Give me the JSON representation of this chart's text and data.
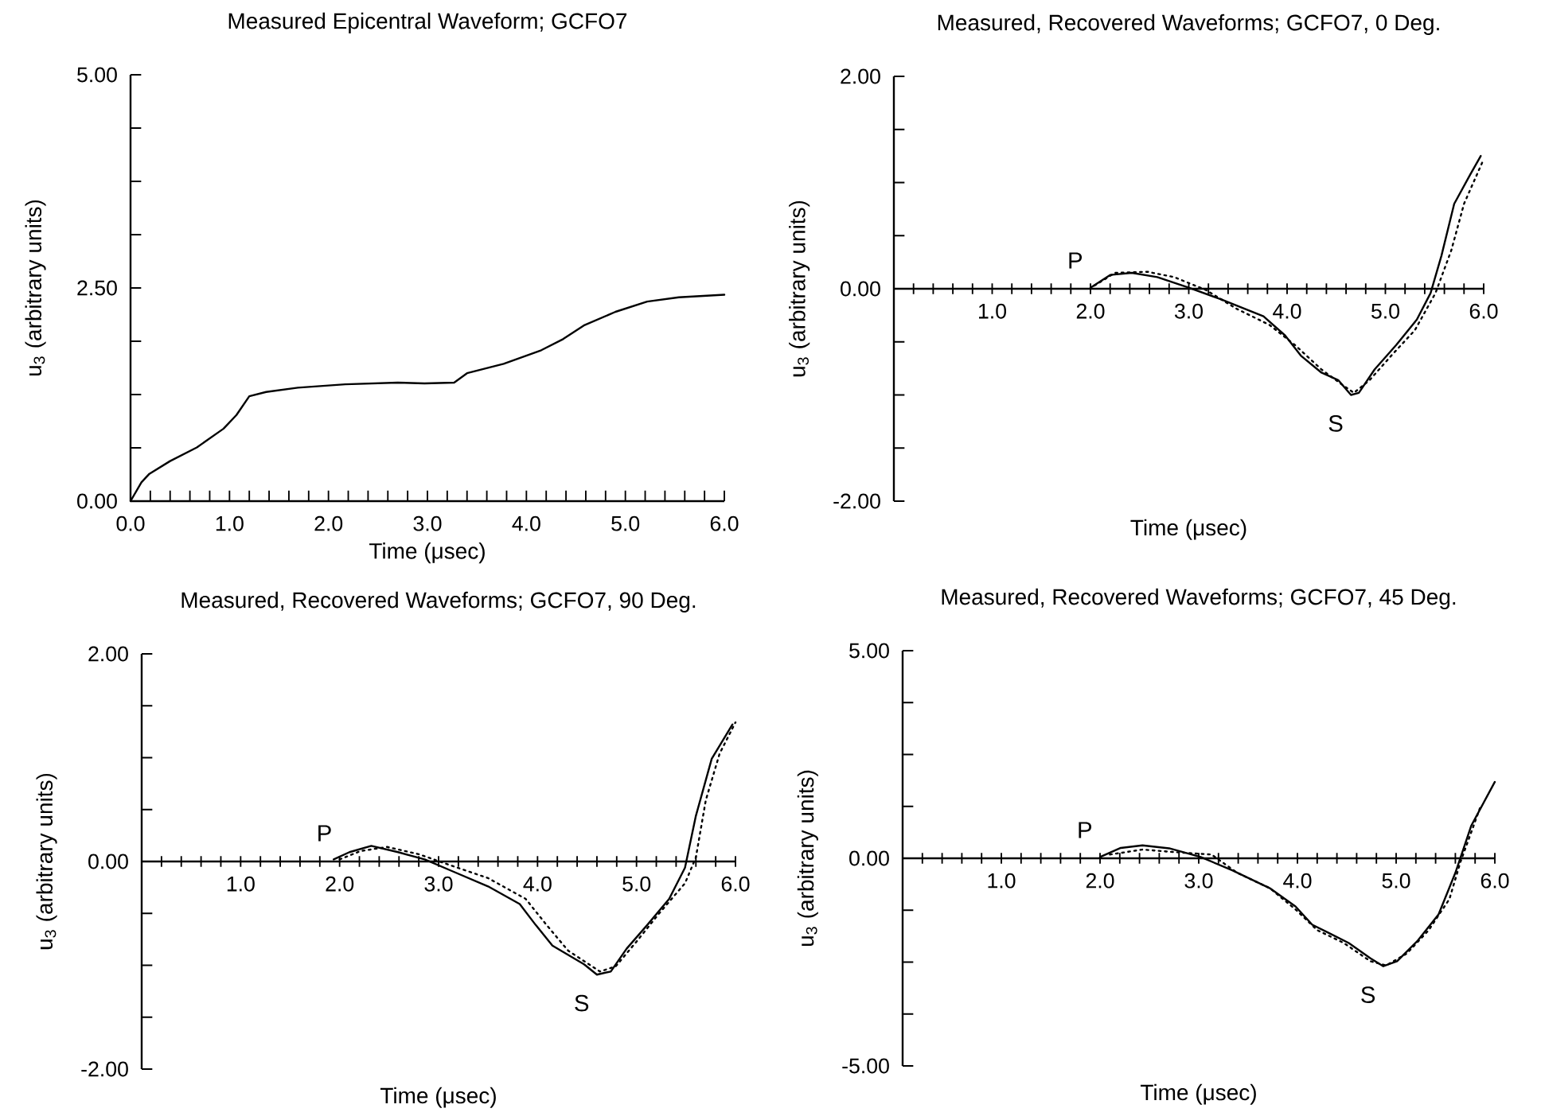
{
  "chart_data": [
    {
      "type": "line",
      "title": "Measured Epicentral Waveform; GCFO7",
      "xlabel": "Time (μsec)",
      "ylabel": "u$_{3}$ (arbitrary units)",
      "xlim": [
        0,
        6
      ],
      "ylim": [
        0,
        5
      ],
      "xticks": [
        {
          "value": 0,
          "label": "0.0"
        },
        {
          "value": 0.2,
          "label": null
        },
        {
          "value": 0.4,
          "label": null
        },
        {
          "value": 0.6,
          "label": null
        },
        {
          "value": 0.8,
          "label": null
        },
        {
          "value": 1,
          "label": "1.0"
        },
        {
          "value": 1.2,
          "label": null
        },
        {
          "value": 1.4,
          "label": null
        },
        {
          "value": 1.6,
          "label": null
        },
        {
          "value": 1.8,
          "label": null
        },
        {
          "value": 2,
          "label": "2.0"
        },
        {
          "value": 2.2,
          "label": null
        },
        {
          "value": 2.4,
          "label": null
        },
        {
          "value": 2.6,
          "label": null
        },
        {
          "value": 2.8,
          "label": null
        },
        {
          "value": 3,
          "label": "3.0"
        },
        {
          "value": 3.2,
          "label": null
        },
        {
          "value": 3.4,
          "label": null
        },
        {
          "value": 3.6,
          "label": null
        },
        {
          "value": 3.8,
          "label": null
        },
        {
          "value": 4,
          "label": "4.0"
        },
        {
          "value": 4.2,
          "label": null
        },
        {
          "value": 4.4,
          "label": null
        },
        {
          "value": 4.6,
          "label": null
        },
        {
          "value": 4.8,
          "label": null
        },
        {
          "value": 5,
          "label": "5.0"
        },
        {
          "value": 5.2,
          "label": null
        },
        {
          "value": 5.4,
          "label": null
        },
        {
          "value": 5.6,
          "label": null
        },
        {
          "value": 5.8,
          "label": null
        },
        {
          "value": 6,
          "label": "6.0"
        }
      ],
      "yticks": [
        {
          "value": 0,
          "label": "0.00"
        },
        {
          "value": 0.625,
          "label": null
        },
        {
          "value": 1.25,
          "label": null
        },
        {
          "value": 1.875,
          "label": null
        },
        {
          "value": 2.5,
          "label": "2.50"
        },
        {
          "value": 3.125,
          "label": null
        },
        {
          "value": 3.75,
          "label": null
        },
        {
          "value": 4.375,
          "label": null
        },
        {
          "value": 5,
          "label": "5.00"
        }
      ],
      "series": [
        {
          "color": "#000000",
          "line_style": "solid",
          "x": [
            0,
            0.11,
            0.19,
            0.4,
            0.67,
            0.94,
            1.07,
            1.2,
            1.37,
            1.69,
            2.17,
            2.7,
            2.97,
            3.27,
            3.4,
            3.77,
            4.15,
            4.37,
            4.58,
            4.9,
            5.22,
            5.54,
            6.0
          ],
          "values": [
            0,
            0.22,
            0.32,
            0.47,
            0.63,
            0.85,
            1.01,
            1.23,
            1.28,
            1.33,
            1.37,
            1.39,
            1.38,
            1.39,
            1.5,
            1.61,
            1.77,
            1.9,
            2.06,
            2.22,
            2.34,
            2.39,
            2.42
          ]
        }
      ]
    },
    {
      "type": "line",
      "title": "Measured, Recovered Waveforms; GCFO7, 0 Deg.",
      "xlabel": "Time (μsec)",
      "ylabel": "u$_{3}$ (arbitrary units)",
      "xlim": [
        0,
        6
      ],
      "ylim": [
        -2,
        2
      ],
      "xticks": [
        {
          "value": 0.2,
          "label": null
        },
        {
          "value": 0.4,
          "label": null
        },
        {
          "value": 0.6,
          "label": null
        },
        {
          "value": 0.8,
          "label": null
        },
        {
          "value": 1,
          "label": "1.0"
        },
        {
          "value": 1.2,
          "label": null
        },
        {
          "value": 1.4,
          "label": null
        },
        {
          "value": 1.6,
          "label": null
        },
        {
          "value": 1.8,
          "label": null
        },
        {
          "value": 2,
          "label": "2.0"
        },
        {
          "value": 2.2,
          "label": null
        },
        {
          "value": 2.4,
          "label": null
        },
        {
          "value": 2.6,
          "label": null
        },
        {
          "value": 2.8,
          "label": null
        },
        {
          "value": 3,
          "label": "3.0"
        },
        {
          "value": 3.2,
          "label": null
        },
        {
          "value": 3.4,
          "label": null
        },
        {
          "value": 3.6,
          "label": null
        },
        {
          "value": 3.8,
          "label": null
        },
        {
          "value": 4,
          "label": "4.0"
        },
        {
          "value": 4.2,
          "label": null
        },
        {
          "value": 4.4,
          "label": null
        },
        {
          "value": 4.6,
          "label": null
        },
        {
          "value": 4.8,
          "label": null
        },
        {
          "value": 5,
          "label": "5.0"
        },
        {
          "value": 5.2,
          "label": null
        },
        {
          "value": 5.4,
          "label": null
        },
        {
          "value": 5.6,
          "label": null
        },
        {
          "value": 5.8,
          "label": null
        },
        {
          "value": 6,
          "label": "6.0"
        }
      ],
      "yticks": [
        {
          "value": -2,
          "label": "-2.00"
        },
        {
          "value": -1.5,
          "label": null
        },
        {
          "value": -1,
          "label": null
        },
        {
          "value": -0.5,
          "label": null
        },
        {
          "value": 0,
          "label": "0.00"
        },
        {
          "value": 0.5,
          "label": null
        },
        {
          "value": 1,
          "label": null
        },
        {
          "value": 1.5,
          "label": null
        },
        {
          "value": 2,
          "label": "2.00"
        }
      ],
      "annotations": [
        {
          "text": "P",
          "x": 2.0,
          "y": 0
        },
        {
          "text": "S",
          "x": 4.65,
          "y": -1.0
        }
      ],
      "series": [
        {
          "color": "#000000",
          "line_style": "solid",
          "x": [
            2.0,
            2.2,
            2.42,
            2.68,
            3.0,
            3.33,
            3.76,
            3.98,
            4.14,
            4.35,
            4.52,
            4.65,
            4.73,
            4.89,
            5.11,
            5.32,
            5.46,
            5.57,
            5.7,
            5.86,
            5.97
          ],
          "values": [
            0.01,
            0.13,
            0.15,
            0.11,
            0.01,
            -0.1,
            -0.26,
            -0.44,
            -0.63,
            -0.79,
            -0.86,
            -1.0,
            -0.98,
            -0.76,
            -0.53,
            -0.29,
            -0.04,
            0.31,
            0.8,
            1.07,
            1.25
          ]
        },
        {
          "color": "#000000",
          "line_style": "dotted",
          "x": [
            2.04,
            2.25,
            2.58,
            2.85,
            3.17,
            3.49,
            3.82,
            4.08,
            4.35,
            4.57,
            4.68,
            4.84,
            5.06,
            5.3,
            5.51,
            5.67,
            5.8,
            6.0
          ],
          "values": [
            0.03,
            0.15,
            0.16,
            0.11,
            -0.01,
            -0.19,
            -0.34,
            -0.53,
            -0.76,
            -0.91,
            -0.98,
            -0.86,
            -0.63,
            -0.39,
            -0.04,
            0.36,
            0.8,
            1.22
          ]
        }
      ]
    },
    {
      "type": "line",
      "title": "Measured, Recovered Waveforms; GCFO7, 90 Deg.",
      "xlabel": "Time (μsec)",
      "ylabel": "u$_{3}$ (arbitrary units)",
      "xlim": [
        0,
        6
      ],
      "ylim": [
        -2,
        2
      ],
      "xticks": [
        {
          "value": 0.2,
          "label": null
        },
        {
          "value": 0.4,
          "label": null
        },
        {
          "value": 0.6,
          "label": null
        },
        {
          "value": 0.8,
          "label": null
        },
        {
          "value": 1,
          "label": "1.0"
        },
        {
          "value": 1.2,
          "label": null
        },
        {
          "value": 1.4,
          "label": null
        },
        {
          "value": 1.6,
          "label": null
        },
        {
          "value": 1.8,
          "label": null
        },
        {
          "value": 2,
          "label": "2.0"
        },
        {
          "value": 2.2,
          "label": null
        },
        {
          "value": 2.4,
          "label": null
        },
        {
          "value": 2.6,
          "label": null
        },
        {
          "value": 2.8,
          "label": null
        },
        {
          "value": 3,
          "label": "3.0"
        },
        {
          "value": 3.2,
          "label": null
        },
        {
          "value": 3.4,
          "label": null
        },
        {
          "value": 3.6,
          "label": null
        },
        {
          "value": 3.8,
          "label": null
        },
        {
          "value": 4,
          "label": "4.0"
        },
        {
          "value": 4.2,
          "label": null
        },
        {
          "value": 4.4,
          "label": null
        },
        {
          "value": 4.6,
          "label": null
        },
        {
          "value": 4.8,
          "label": null
        },
        {
          "value": 5,
          "label": "5.0"
        },
        {
          "value": 5.2,
          "label": null
        },
        {
          "value": 5.4,
          "label": null
        },
        {
          "value": 5.6,
          "label": null
        },
        {
          "value": 5.8,
          "label": null
        },
        {
          "value": 6,
          "label": "6.0"
        }
      ],
      "yticks": [
        {
          "value": -2,
          "label": "-2.00"
        },
        {
          "value": -1.5,
          "label": null
        },
        {
          "value": -1,
          "label": null
        },
        {
          "value": -0.5,
          "label": null
        },
        {
          "value": 0,
          "label": "0.00"
        },
        {
          "value": 0.5,
          "label": null
        },
        {
          "value": 1,
          "label": null
        },
        {
          "value": 1.5,
          "label": null
        },
        {
          "value": 2,
          "label": "2.00"
        }
      ],
      "annotations": [
        {
          "text": "P",
          "x": 2.0,
          "y": 0
        },
        {
          "text": "S",
          "x": 4.6,
          "y": -1.09
        }
      ],
      "series": [
        {
          "color": "#000000",
          "line_style": "solid",
          "x": [
            1.94,
            2.1,
            2.32,
            2.59,
            2.86,
            3.13,
            3.5,
            3.82,
            3.98,
            4.15,
            4.31,
            4.47,
            4.6,
            4.74,
            4.9,
            5.11,
            5.33,
            5.49,
            5.6,
            5.76,
            5.97
          ],
          "values": [
            0.02,
            0.09,
            0.15,
            0.09,
            0.02,
            -0.09,
            -0.24,
            -0.41,
            -0.61,
            -0.81,
            -0.9,
            -0.99,
            -1.09,
            -1.06,
            -0.84,
            -0.61,
            -0.36,
            -0.06,
            0.44,
            0.99,
            1.32
          ]
        },
        {
          "color": "#000000",
          "line_style": "dotted",
          "x": [
            2.0,
            2.21,
            2.48,
            2.8,
            3.13,
            3.5,
            3.88,
            4.09,
            4.31,
            4.47,
            4.63,
            4.79,
            5.01,
            5.22,
            5.49,
            5.6,
            5.7,
            5.84,
            6.0
          ],
          "values": [
            0.02,
            0.1,
            0.14,
            0.07,
            -0.04,
            -0.16,
            -0.36,
            -0.61,
            -0.86,
            -0.96,
            -1.06,
            -1.01,
            -0.76,
            -0.51,
            -0.21,
            0.04,
            0.59,
            1.04,
            1.34
          ]
        }
      ]
    },
    {
      "type": "line",
      "title": "Measured, Recovered Waveforms; GCFO7, 45 Deg.",
      "xlabel": "Time (μsec)",
      "ylabel": "u$_{3}$ (arbitrary units)",
      "xlim": [
        0,
        6
      ],
      "ylim": [
        -5,
        5
      ],
      "xticks": [
        {
          "value": 0.2,
          "label": null
        },
        {
          "value": 0.4,
          "label": null
        },
        {
          "value": 0.6,
          "label": null
        },
        {
          "value": 0.8,
          "label": null
        },
        {
          "value": 1,
          "label": "1.0"
        },
        {
          "value": 1.2,
          "label": null
        },
        {
          "value": 1.4,
          "label": null
        },
        {
          "value": 1.6,
          "label": null
        },
        {
          "value": 1.8,
          "label": null
        },
        {
          "value": 2,
          "label": "2.0"
        },
        {
          "value": 2.2,
          "label": null
        },
        {
          "value": 2.4,
          "label": null
        },
        {
          "value": 2.6,
          "label": null
        },
        {
          "value": 2.8,
          "label": null
        },
        {
          "value": 3,
          "label": "3.0"
        },
        {
          "value": 3.2,
          "label": null
        },
        {
          "value": 3.4,
          "label": null
        },
        {
          "value": 3.6,
          "label": null
        },
        {
          "value": 3.8,
          "label": null
        },
        {
          "value": 4,
          "label": "4.0"
        },
        {
          "value": 4.2,
          "label": null
        },
        {
          "value": 4.4,
          "label": null
        },
        {
          "value": 4.6,
          "label": null
        },
        {
          "value": 4.8,
          "label": null
        },
        {
          "value": 5,
          "label": "5.0"
        },
        {
          "value": 5.2,
          "label": null
        },
        {
          "value": 5.4,
          "label": null
        },
        {
          "value": 5.6,
          "label": null
        },
        {
          "value": 5.8,
          "label": null
        },
        {
          "value": 6,
          "label": "6.0"
        }
      ],
      "yticks": [
        {
          "value": -5,
          "label": "-5.00"
        },
        {
          "value": -3.75,
          "label": null
        },
        {
          "value": -2.5,
          "label": null
        },
        {
          "value": -1.25,
          "label": null
        },
        {
          "value": 0,
          "label": "0.00"
        },
        {
          "value": 1.25,
          "label": null
        },
        {
          "value": 2.5,
          "label": null
        },
        {
          "value": 3.75,
          "label": null
        },
        {
          "value": 5,
          "label": "5.00"
        }
      ],
      "annotations": [
        {
          "text": "P",
          "x": 2.0,
          "y": 0
        },
        {
          "text": "S",
          "x": 4.87,
          "y": -2.6
        }
      ],
      "series": [
        {
          "color": "#000000",
          "line_style": "solid",
          "x": [
            2.0,
            2.21,
            2.43,
            2.7,
            3.02,
            3.34,
            3.72,
            3.98,
            4.15,
            4.31,
            4.52,
            4.74,
            4.87,
            5.01,
            5.22,
            5.43,
            5.6,
            5.76,
            6.0
          ],
          "values": [
            0.03,
            0.25,
            0.31,
            0.24,
            0.03,
            -0.29,
            -0.72,
            -1.16,
            -1.6,
            -1.79,
            -2.04,
            -2.41,
            -2.6,
            -2.48,
            -1.98,
            -1.35,
            -0.35,
            0.78,
            1.84
          ]
        },
        {
          "color": "#000000",
          "line_style": "dotted",
          "x": [
            2.1,
            2.43,
            2.75,
            3.13,
            3.39,
            3.72,
            3.98,
            4.2,
            4.47,
            4.74,
            4.9,
            5.11,
            5.33,
            5.54,
            5.65,
            5.86
          ],
          "values": [
            0.09,
            0.21,
            0.15,
            0.09,
            -0.35,
            -0.72,
            -1.23,
            -1.73,
            -2.04,
            -2.48,
            -2.58,
            -2.29,
            -1.73,
            -0.98,
            -0.1,
            1.28
          ]
        }
      ]
    }
  ]
}
